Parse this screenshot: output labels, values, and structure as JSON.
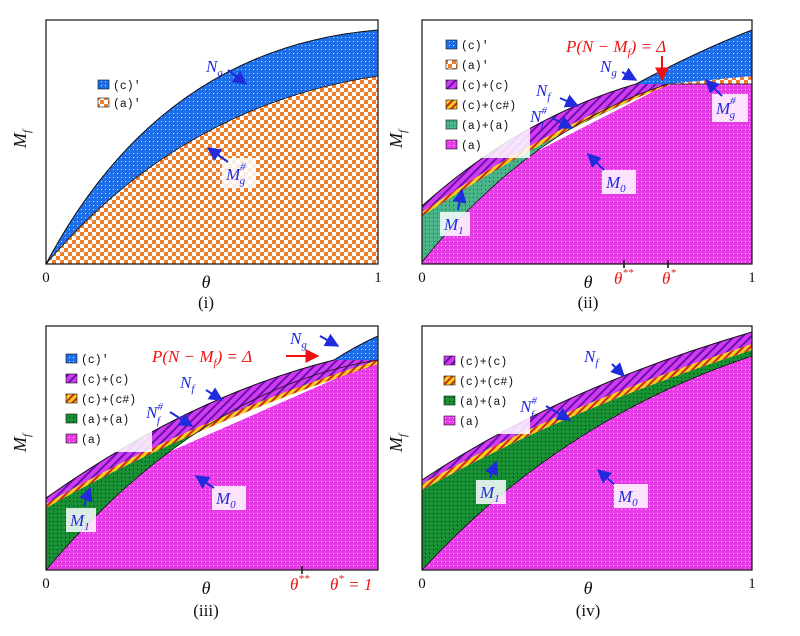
{
  "axes": {
    "x_label": "θ",
    "y_label": "M",
    "y_sub": "f",
    "x_min": "0",
    "x_max": "1"
  },
  "panels": [
    {
      "caption": "(i)",
      "legend": [
        "(c)'",
        "(a)'"
      ],
      "labels": {
        "Ng": "N",
        "Ng_sub": "g",
        "Mg": "M",
        "Mg_sup": "#",
        "Mg_sub": "g"
      }
    },
    {
      "caption": "(ii)",
      "legend": [
        "(c)'",
        "(a)'",
        "(c)+(c)",
        "(c)+(c#)",
        "(a)+(a)",
        "(a)"
      ],
      "labels": {
        "Ng": "N",
        "Ng_sub": "g",
        "Nf": "N",
        "Nf_sub": "f",
        "Nfs": "N",
        "Nfs_sup": "#",
        "Nfs_sub": "f",
        "M0": "M",
        "M0_sub": "0",
        "M1": "M",
        "M1_sub": "1",
        "Mg": "M",
        "Mg_sup": "#",
        "Mg_sub": "g",
        "cond": "P(N − M",
        "cond_sub": "f",
        "cond_end": ") = Δ",
        "theta2": "θ",
        "theta2_sup": "**",
        "theta1": "θ",
        "theta1_sup": "*"
      }
    },
    {
      "caption": "(iii)",
      "legend": [
        "(c)'",
        "(c)+(c)",
        "(c)+(c#)",
        "(a)+(a)",
        "(a)"
      ],
      "labels": {
        "Ng": "N",
        "Ng_sub": "g",
        "Nf": "N",
        "Nf_sub": "f",
        "Nfs": "N",
        "Nfs_sup": "#",
        "Nfs_sub": "f",
        "M0": "M",
        "M0_sub": "0",
        "M1": "M",
        "M1_sub": "1",
        "cond": "P(N − M",
        "cond_sub": "f",
        "cond_end": ") = Δ",
        "theta2": "θ",
        "theta2_sup": "**",
        "theta1": "θ",
        "theta1_sup": "*",
        "theta1_eq": " = 1"
      }
    },
    {
      "caption": "(iv)",
      "legend": [
        "(c)+(c)",
        "(c)+(c#)",
        "(a)+(a)",
        "(a)"
      ],
      "labels": {
        "Nf": "N",
        "Nf_sub": "f",
        "Nfs": "N",
        "Nfs_sup": "#",
        "Nfs_sub": "f",
        "M0": "M",
        "M0_sub": "0",
        "M1": "M",
        "M1_sub": "1"
      }
    }
  ],
  "colors": {
    "blue": "#1e6ee8",
    "orange": "#f08a3c",
    "magenta": "#e63ce6",
    "purple": "#8a1fd0",
    "green": "#1f9a3a",
    "yellow": "#f4d21a",
    "label": "#1f2bdc",
    "red": "#ee1111"
  }
}
